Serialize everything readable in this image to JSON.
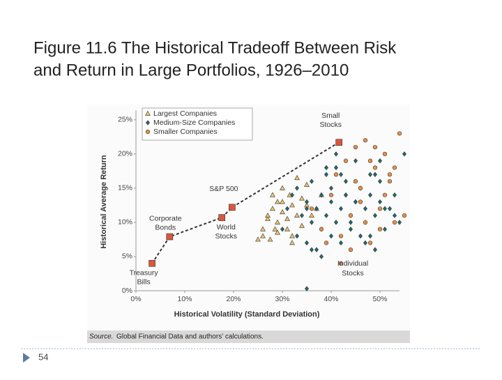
{
  "title_lines": [
    "Figure 11.6  The Historical Tradeoff Between Risk",
    "and Return in Large Portfolios, 1926–2010"
  ],
  "slide_number": "54",
  "chart_data": {
    "type": "scatter",
    "x_label": "Historical Volatility (Standard Deviation)",
    "y_label": "Historical Average Return",
    "xlim": [
      0,
      54
    ],
    "ylim": [
      0,
      26
    ],
    "xticks": [
      {
        "value": 0,
        "label": "0%"
      },
      {
        "value": 10,
        "label": "10%"
      },
      {
        "value": 20,
        "label": "20%"
      },
      {
        "value": 30,
        "label": "30%"
      },
      {
        "value": 40,
        "label": "40%"
      },
      {
        "value": 50,
        "label": "50%"
      }
    ],
    "yticks": [
      {
        "value": 0,
        "label": "0%"
      },
      {
        "value": 5,
        "label": "5%"
      },
      {
        "value": 10,
        "label": "10%"
      },
      {
        "value": 15,
        "label": "15%"
      },
      {
        "value": 20,
        "label": "20%"
      },
      {
        "value": 25,
        "label": "25%"
      }
    ],
    "legend_position": "upper left",
    "series": [
      {
        "name": "Largest Companies",
        "marker": "triangle",
        "color": "#e9c36c",
        "x": [
          25,
          26,
          27,
          27.5,
          28,
          28.5,
          29,
          29,
          30,
          30,
          31,
          31.5,
          32,
          32,
          33,
          34,
          34,
          35,
          36,
          37,
          38,
          27,
          29,
          31,
          33,
          30,
          28,
          26,
          32,
          35
        ],
        "y": [
          7.5,
          8,
          10.5,
          7.5,
          12,
          9,
          13,
          10,
          15,
          11.5,
          9,
          14,
          12.5,
          8,
          11,
          13.5,
          9.5,
          15.5,
          11,
          12,
          14,
          11,
          8.5,
          10.5,
          16.5,
          13,
          14,
          9,
          7,
          12.5
        ]
      },
      {
        "name": "Medium-Size Companies",
        "marker": "diamond",
        "color": "#1f6d6e",
        "x": [
          30,
          31,
          32,
          33,
          34,
          35,
          35,
          36,
          36,
          37,
          37,
          38,
          38,
          39,
          39,
          40,
          40,
          40,
          41,
          41,
          42,
          42,
          43,
          43,
          44,
          44,
          45,
          45,
          46,
          46,
          47,
          47,
          48,
          48,
          49,
          49,
          50,
          50,
          51,
          52,
          53,
          54,
          55,
          33,
          36,
          39,
          42,
          45,
          48,
          51,
          38,
          41,
          44,
          47,
          50,
          53,
          35,
          43,
          49,
          35
        ],
        "y": [
          9,
          12,
          14,
          8,
          11,
          13,
          7,
          10,
          16,
          12,
          6,
          14,
          9,
          11,
          17,
          8,
          13,
          15,
          10,
          18,
          12,
          7,
          14,
          16,
          9,
          11,
          13,
          19,
          8,
          15,
          12,
          10,
          17,
          14,
          11,
          6,
          13,
          16,
          9,
          12,
          14,
          10,
          20,
          15,
          6,
          18,
          17,
          13,
          8,
          12,
          5,
          20,
          10,
          7,
          19,
          11,
          12,
          14,
          17,
          0.3
        ]
      },
      {
        "name": "Smaller Companies",
        "marker": "circle",
        "color": "#e98f45",
        "x": [
          36,
          38,
          40,
          41,
          42,
          43,
          44,
          45,
          46,
          47,
          48,
          49,
          50,
          51,
          52,
          53,
          54,
          44,
          46,
          48,
          50,
          52,
          42,
          47,
          51,
          55,
          45,
          49,
          53,
          39
        ],
        "y": [
          12,
          9,
          14,
          17,
          8,
          19,
          11,
          21,
          15,
          22,
          7,
          18,
          12,
          20,
          16,
          10,
          23,
          6,
          13,
          19,
          9,
          17,
          4,
          10,
          14,
          11,
          16,
          21,
          18,
          7
        ]
      }
    ],
    "portfolios": {
      "color": "#d9573a",
      "labels": [
        [
          "Treasury",
          "Bills"
        ],
        [
          "Corporate",
          "Bonds"
        ],
        [
          "World",
          "Stocks"
        ],
        [
          "S&P 500"
        ],
        [
          "Small",
          "Stocks"
        ]
      ],
      "x": [
        3.3,
        6.9,
        17.6,
        19.7,
        41.6
      ],
      "y": [
        4.0,
        7.9,
        10.7,
        12.2,
        21.7
      ]
    },
    "annotation_lines": [
      "Individual",
      "Stocks"
    ],
    "source_label": "Source.",
    "source_text": "Global Financial Data and authors’ calculations."
  }
}
